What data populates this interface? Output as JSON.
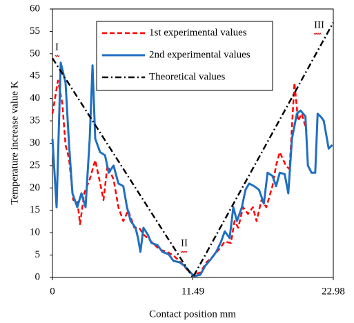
{
  "chart_data": {
    "type": "line",
    "x_label": "Contact position mm",
    "y_label": "Temperature increase value K",
    "xlim": [
      0,
      22.98
    ],
    "xticks": [
      0,
      11.49,
      22.98
    ],
    "ylim": [
      0,
      60
    ],
    "yticks": [
      0,
      5,
      10,
      15,
      20,
      25,
      30,
      35,
      40,
      45,
      50,
      55,
      60
    ],
    "grid": false,
    "legend": "top",
    "annotations": [
      "I",
      "II",
      "III"
    ],
    "series": [
      {
        "name": "1st experimental values",
        "color": "#ff0000",
        "dash": "dashed",
        "x": [
          0,
          0.45,
          0.8,
          1.07,
          1.36,
          1.7,
          2.03,
          2.26,
          2.6,
          3.05,
          3.5,
          3.95,
          4.18,
          4.5,
          5.0,
          5.4,
          5.8,
          6.2,
          6.7,
          7.1,
          7.45,
          7.8,
          8.2,
          8.8,
          9.4,
          9.9,
          10.5,
          11.1,
          11.5,
          12.1,
          12.6,
          13.2,
          13.7,
          14.1,
          14.6,
          14.9,
          15.2,
          15.6,
          16.0,
          16.4,
          16.7,
          17.1,
          17.5,
          18.0,
          18.3,
          18.6,
          19.1,
          19.4,
          19.8,
          20.1,
          20.4,
          20.8
        ],
        "values": [
          36.6,
          44,
          39,
          29.6,
          26.5,
          17.3,
          17.3,
          11.9,
          18.8,
          21.9,
          26.2,
          20.4,
          17.3,
          25,
          21.9,
          15.7,
          12.6,
          15,
          11.1,
          11.1,
          9.6,
          8.8,
          7.7,
          6.2,
          5.7,
          4.9,
          3.4,
          1.5,
          0.6,
          1.1,
          3.4,
          4.9,
          6.5,
          8,
          7.7,
          12.6,
          11.1,
          15.7,
          14.2,
          15.7,
          12.6,
          17.3,
          15.7,
          20.4,
          25,
          28,
          25,
          24.2,
          43.5,
          35,
          36.6,
          32.7
        ]
      },
      {
        "name": "2nd experimental values",
        "color": "#1f6fc1",
        "dash": "solid",
        "x": [
          0,
          0.34,
          0.68,
          1.07,
          1.36,
          1.64,
          2.03,
          2.37,
          2.71,
          3.05,
          3.28,
          3.5,
          3.9,
          4.3,
          4.6,
          5.0,
          5.4,
          5.8,
          6.1,
          6.4,
          6.8,
          7.0,
          7.2,
          7.45,
          7.8,
          8.1,
          8.6,
          9.0,
          9.5,
          9.9,
          10.4,
          10.8,
          11.3,
          11.6,
          12.1,
          12.5,
          13.0,
          13.4,
          13.8,
          14.1,
          14.5,
          14.8,
          15.1,
          15.5,
          15.8,
          16.1,
          16.5,
          16.9,
          17.3,
          17.6,
          18.0,
          18.3,
          18.6,
          19.0,
          19.3,
          19.6,
          20.0,
          20.3,
          20.7,
          20.9,
          21.2,
          21.5,
          21.7,
          22.0,
          22.2,
          22.6,
          22.9
        ],
        "values": [
          31,
          15.7,
          48,
          43.5,
          29.6,
          18.8,
          15.7,
          18.8,
          15.7,
          31,
          47.4,
          31,
          28,
          27.3,
          23.4,
          25,
          21,
          20.4,
          15.7,
          12.6,
          11.1,
          8.8,
          5.7,
          11.1,
          9.6,
          7.7,
          7.2,
          5.7,
          5.2,
          3.7,
          3.4,
          2.6,
          1.1,
          0.3,
          0.6,
          2.6,
          4.2,
          5.7,
          8,
          10.3,
          8.8,
          15.7,
          12.6,
          15.7,
          19.6,
          21,
          20.4,
          19.6,
          16.5,
          23.4,
          22.7,
          20.4,
          23.4,
          23.1,
          18.8,
          31,
          36.6,
          37.3,
          36,
          25,
          23.4,
          23.4,
          36.6,
          35.8,
          35,
          28.8,
          29.6
        ]
      },
      {
        "name": "Theoretical values",
        "color": "#000000",
        "dash": "dashdot",
        "x": [
          0,
          11.49,
          22.98
        ],
        "values": [
          49,
          0,
          57
        ]
      }
    ]
  }
}
